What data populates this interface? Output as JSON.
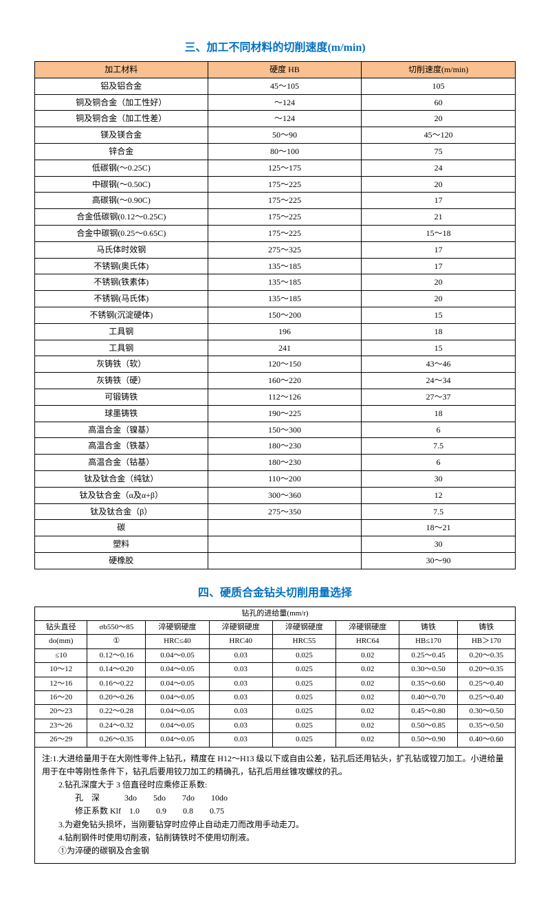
{
  "section1": {
    "title": "三、加工不同材料的切削速度(m/min)",
    "columns": [
      "加工材料",
      "硬度 HB",
      "切削速度(m/min)"
    ],
    "rows": [
      [
        "铝及铝合金",
        "45～105",
        "105"
      ],
      [
        "铜及铜合金（加工性好）",
        "～124",
        "60"
      ],
      [
        "铜及铜合金（加工性差）",
        "～124",
        "20"
      ],
      [
        "镁及镁合金",
        "50～90",
        "45～120"
      ],
      [
        "锌合金",
        "80～100",
        "75"
      ],
      [
        "低碳钢(～0.25C)",
        "125～175",
        "24"
      ],
      [
        "中碳钢(～0.50C)",
        "175～225",
        "20"
      ],
      [
        "高碳钢(～0.90C)",
        "175～225",
        "17"
      ],
      [
        "合金低碳钢(0.12～0.25C)",
        "175～225",
        "21"
      ],
      [
        "合金中碳钢(0.25～0.65C)",
        "175～225",
        "15～18"
      ],
      [
        "马氏体时效钢",
        "275～325",
        "17"
      ],
      [
        "不锈钢(奥氏体)",
        "135～185",
        "17"
      ],
      [
        "不锈钢(铁素体)",
        "135～185",
        "20"
      ],
      [
        "不锈钢(马氏体)",
        "135～185",
        "20"
      ],
      [
        "不锈钢(沉淀硬体)",
        "150～200",
        "15"
      ],
      [
        "工具钢",
        "196",
        "18"
      ],
      [
        "工具钢",
        "241",
        "15"
      ],
      [
        "灰铸铁（软）",
        "120～150",
        "43～46"
      ],
      [
        "灰铸铁（硬）",
        "160～220",
        "24～34"
      ],
      [
        "可锻铸铁",
        "112～126",
        "27～37"
      ],
      [
        "球墨铸铁",
        "190～225",
        "18"
      ],
      [
        "高温合金（镍基）",
        "150～300",
        "6"
      ],
      [
        "高温合金（铁基）",
        "180～230",
        "7.5"
      ],
      [
        "高温合金（钴基）",
        "180～230",
        "6"
      ],
      [
        "钛及钛合金（纯钛）",
        "110～200",
        "30"
      ],
      [
        "钛及钛合金（α及α+β）",
        "300～360",
        "12"
      ],
      [
        "钛及钛合金（β）",
        "275～350",
        "7.5"
      ],
      [
        "碳",
        "",
        "18～21"
      ],
      [
        "塑料",
        "",
        "30"
      ],
      [
        "硬橡胶",
        "",
        "30～90"
      ]
    ]
  },
  "section2": {
    "title": "四、硬质合金钻头切削用量选择",
    "group_header": "钻孔的进给量(mm/r)",
    "columns_row1": [
      "钻头直径",
      "σb550～85",
      "淬硬钢硬度",
      "淬硬钢硬度",
      "淬硬钢硬度",
      "淬硬钢硬度",
      "铸铁",
      "铸铁"
    ],
    "columns_row2": [
      "do(mm)",
      "①",
      "HRC≤40",
      "HRC40",
      "HRC55",
      "HRC64",
      "HB≤170",
      "HB＞170"
    ],
    "rows": [
      [
        "≤10",
        "0.12～0.16",
        "0.04～0.05",
        "0.03",
        "0.025",
        "0.02",
        "0.25～0.45",
        "0.20～0.35"
      ],
      [
        "10～12",
        "0.14～0.20",
        "0.04～0.05",
        "0.03",
        "0.025",
        "0.02",
        "0.30～0.50",
        "0.20～0.35"
      ],
      [
        "12～16",
        "0.16～0.22",
        "0.04～0.05",
        "0.03",
        "0.025",
        "0.02",
        "0.35～0.60",
        "0.25～0.40"
      ],
      [
        "16～20",
        "0.20～0.26",
        "0.04～0.05",
        "0.03",
        "0.025",
        "0.02",
        "0.40～0.70",
        "0.25～0.40"
      ],
      [
        "20～23",
        "0.22～0.28",
        "0.04～0.05",
        "0.03",
        "0.025",
        "0.02",
        "0.45～0.80",
        "0.30～0.50"
      ],
      [
        "23～26",
        "0.24～0.32",
        "0.04～0.05",
        "0.03",
        "0.025",
        "0.02",
        "0.50～0.85",
        "0.35～0.50"
      ],
      [
        "26～29",
        "0.26～0.35",
        "0.04～0.05",
        "0.03",
        "0.025",
        "0.02",
        "0.50～0.90",
        "0.40～0.60"
      ]
    ],
    "notes": [
      "注:1.大进给量用于在大刚性零件上钻孔，精度在 H12～H13 级以下或自由公差，钻孔后还用钻头，扩孔钻或镗刀加工。小进给量用于在中等刚性条件下，钻孔后要用铰刀加工的精确孔，钻孔后用丝锥攻螺纹的孔。",
      "2.钻孔深度大于 3 倍直径时应乘修正系数:",
      "孔　深　　　3do　　5do　　7do　　10do",
      "修正系数 Klf　1.0　　0.9　　0.8　　0.75",
      "3.为避免钻头损坏，当刚要钻穿时应停止自动走刀而改用手动走刀。",
      "4.钻削钢件时使用切削液，钻削铸铁时不使用切削液。",
      "①为淬硬的碳钢及合金钢"
    ]
  }
}
